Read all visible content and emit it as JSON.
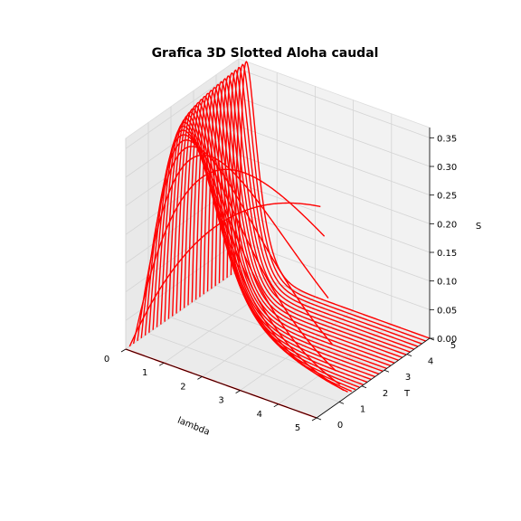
{
  "chart_data": {
    "type": "line3d",
    "title": "Grafica 3D Slotted Aloha caudal",
    "xlabel": "lambda",
    "ylabel": "T",
    "zlabel": "S",
    "xlim": [
      0,
      5
    ],
    "ylim": [
      0,
      5
    ],
    "zlim": [
      0,
      0.3679
    ],
    "x_ticks": [
      "0",
      "1",
      "2",
      "3",
      "4",
      "5"
    ],
    "y_ticks": [
      "0",
      "1",
      "2",
      "3",
      "4",
      "5"
    ],
    "z_ticks": [
      "0.00",
      "0.05",
      "0.10",
      "0.15",
      "0.20",
      "0.25",
      "0.30",
      "0.35"
    ],
    "series_color": "#ff0000",
    "curve_formula": "S = lambda * T * exp(-lambda * T)",
    "lambda_range": [
      0,
      5
    ],
    "T_range": [
      0,
      5
    ],
    "curve_count": 30,
    "grid": true
  }
}
